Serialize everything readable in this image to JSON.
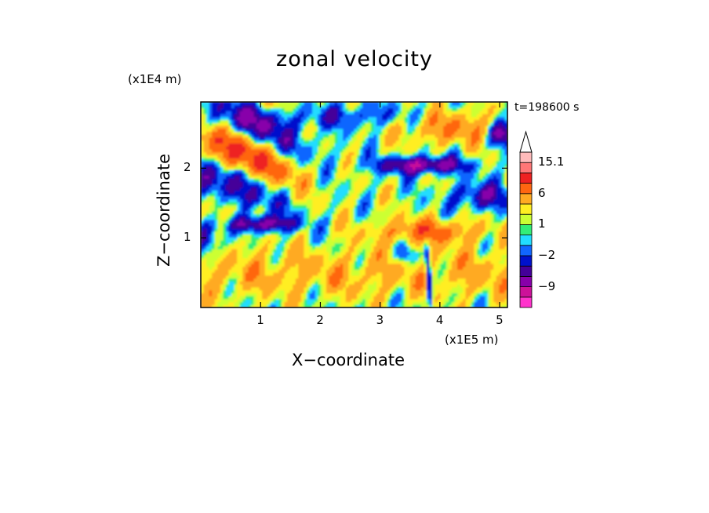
{
  "chart_data": {
    "type": "heatmap",
    "title": "zonal velocity",
    "xlabel": "X−coordinate",
    "ylabel": "Z−coordinate",
    "x_unit": "(x1E5 m)",
    "y_unit": "(x1E4 m)",
    "annotation": "t=198600 s",
    "xlim": [
      0,
      5.13
    ],
    "ylim": [
      0,
      2.95
    ],
    "x_ticks": [
      {
        "value": 1,
        "label": "1"
      },
      {
        "value": 2,
        "label": "2"
      },
      {
        "value": 3,
        "label": "3"
      },
      {
        "value": 4,
        "label": "4"
      },
      {
        "value": 5,
        "label": "5"
      }
    ],
    "y_ticks": [
      {
        "value": 1,
        "label": "1"
      },
      {
        "value": 2,
        "label": "2"
      }
    ],
    "colorbar": {
      "levels": [
        {
          "color": "#ff33cc",
          "label": ""
        },
        {
          "color": "#cc1199",
          "label": ""
        },
        {
          "color": "#8800aa",
          "label": "−9"
        },
        {
          "color": "#440099",
          "label": ""
        },
        {
          "color": "#0011cc",
          "label": ""
        },
        {
          "color": "#1166ff",
          "label": "−2"
        },
        {
          "color": "#22ddff",
          "label": ""
        },
        {
          "color": "#33ee77",
          "label": ""
        },
        {
          "color": "#ccff33",
          "label": "1"
        },
        {
          "color": "#ffee22",
          "label": ""
        },
        {
          "color": "#ffaa22",
          "label": ""
        },
        {
          "color": "#ff6611",
          "label": "6"
        },
        {
          "color": "#ee2222",
          "label": ""
        },
        {
          "color": "#ff7777",
          "label": ""
        },
        {
          "color": "#ffbbbb",
          "label": "15.1"
        }
      ],
      "extend": "max"
    },
    "features": [
      {
        "name": "upper-left-wave-train",
        "description": "alternating bands in upper left"
      },
      {
        "name": "mid-right-jet",
        "description": "positive band near x 3.3-4.5, z 1.1"
      },
      {
        "name": "upper-jet-core",
        "description": "negative band near x 3-4.2, z 2.1"
      }
    ]
  }
}
